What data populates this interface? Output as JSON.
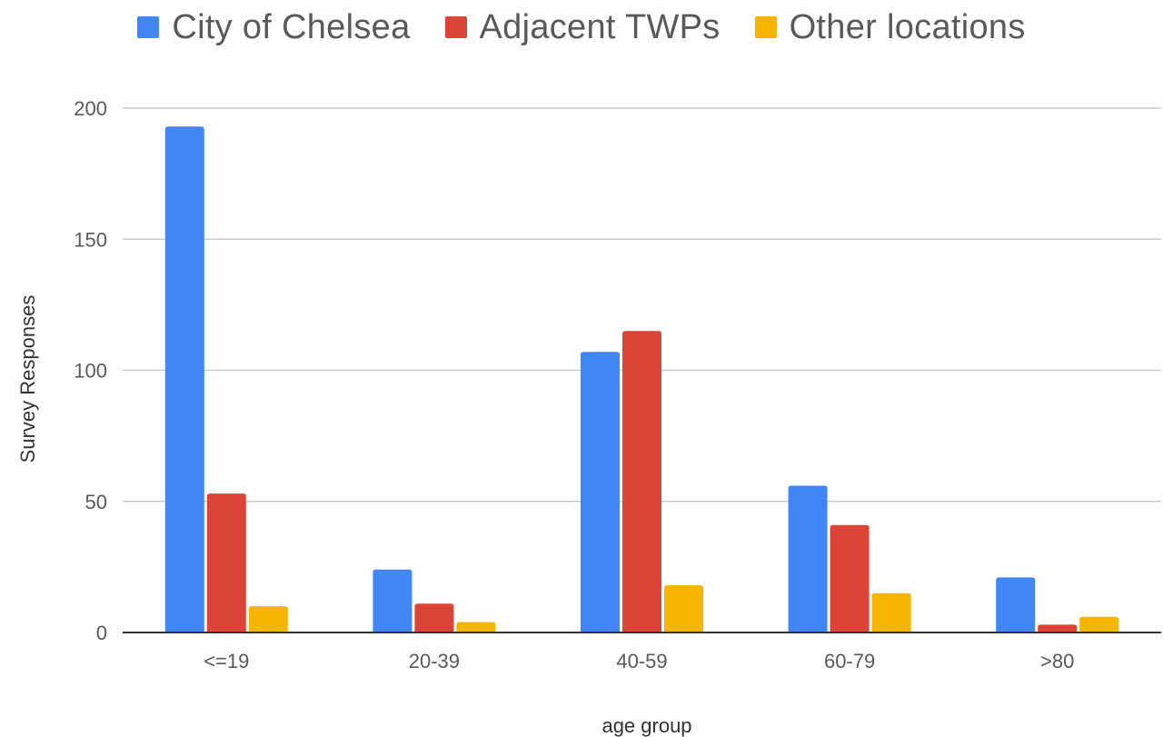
{
  "chart_data": {
    "type": "bar",
    "categories": [
      "<=19",
      "20-39",
      "40-59",
      "60-79",
      ">80"
    ],
    "series": [
      {
        "name": "City of Chelsea",
        "color": "#4285F4",
        "values": [
          193,
          24,
          107,
          56,
          21
        ]
      },
      {
        "name": "Adjacent TWPs",
        "color": "#DB4437",
        "values": [
          53,
          11,
          115,
          41,
          3
        ]
      },
      {
        "name": "Other locations",
        "color": "#F4B400",
        "values": [
          10,
          4,
          18,
          15,
          6
        ]
      }
    ],
    "title": "",
    "xlabel": "age group",
    "ylabel": "Survey Responses",
    "ylim": [
      0,
      200
    ],
    "yticks": [
      "0",
      "50",
      "100",
      "150",
      "200"
    ],
    "grid": true,
    "legend_position": "top"
  }
}
